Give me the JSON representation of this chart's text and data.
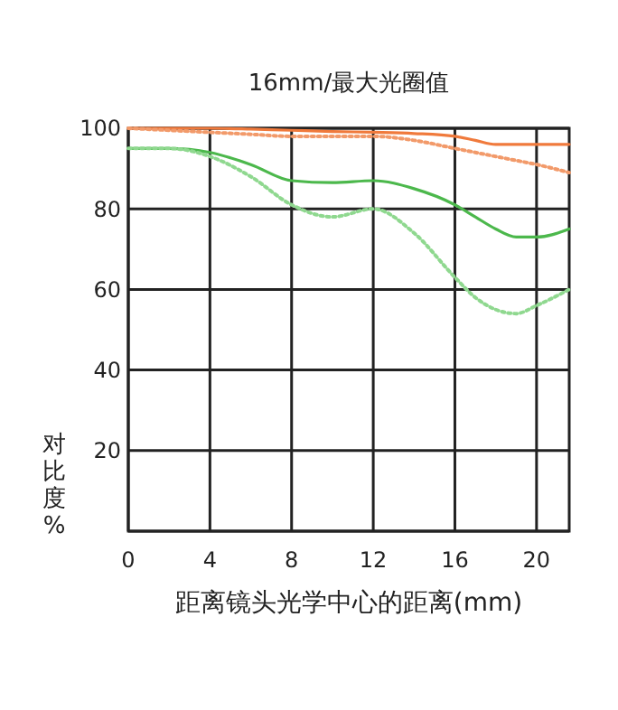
{
  "chart_data": {
    "type": "line",
    "title": "16mm/最大光圈值",
    "xlabel": "距离镜头光学中心的距离(mm)",
    "ylabel": "对比度%",
    "xlim": [
      0,
      21.6
    ],
    "ylim": [
      0,
      100
    ],
    "xticks": [
      0,
      4,
      8,
      12,
      16,
      20
    ],
    "yticks": [
      {
        "value": 0,
        "label": null
      },
      20,
      40,
      60,
      80,
      100
    ],
    "grid": true,
    "marker": "none",
    "x": [
      0,
      2,
      4,
      6,
      8,
      10,
      12,
      14,
      16,
      17,
      18,
      19,
      20,
      21.6
    ],
    "series": [
      {
        "color": "#f07a3c",
        "line_style": "solid",
        "values": [
          100,
          100,
          100,
          99.8,
          99.5,
          99.2,
          99,
          98.7,
          98,
          97,
          96,
          96,
          96,
          96
        ]
      },
      {
        "color": "#f29a6a",
        "line_style": "dotted",
        "values": [
          100,
          99.5,
          99,
          98.5,
          98,
          98,
          98,
          97,
          95,
          94,
          93,
          92,
          91,
          89
        ]
      },
      {
        "color": "#4cb84c",
        "line_style": "solid",
        "values": [
          95,
          95,
          94,
          91,
          87,
          86.5,
          87,
          85,
          81,
          78,
          75,
          73,
          73,
          75
        ]
      },
      {
        "color": "#8fd88f",
        "line_style": "dotted",
        "values": [
          95,
          95,
          93,
          88,
          81,
          78,
          80,
          74,
          63,
          58,
          55,
          54,
          56,
          60
        ]
      }
    ]
  }
}
